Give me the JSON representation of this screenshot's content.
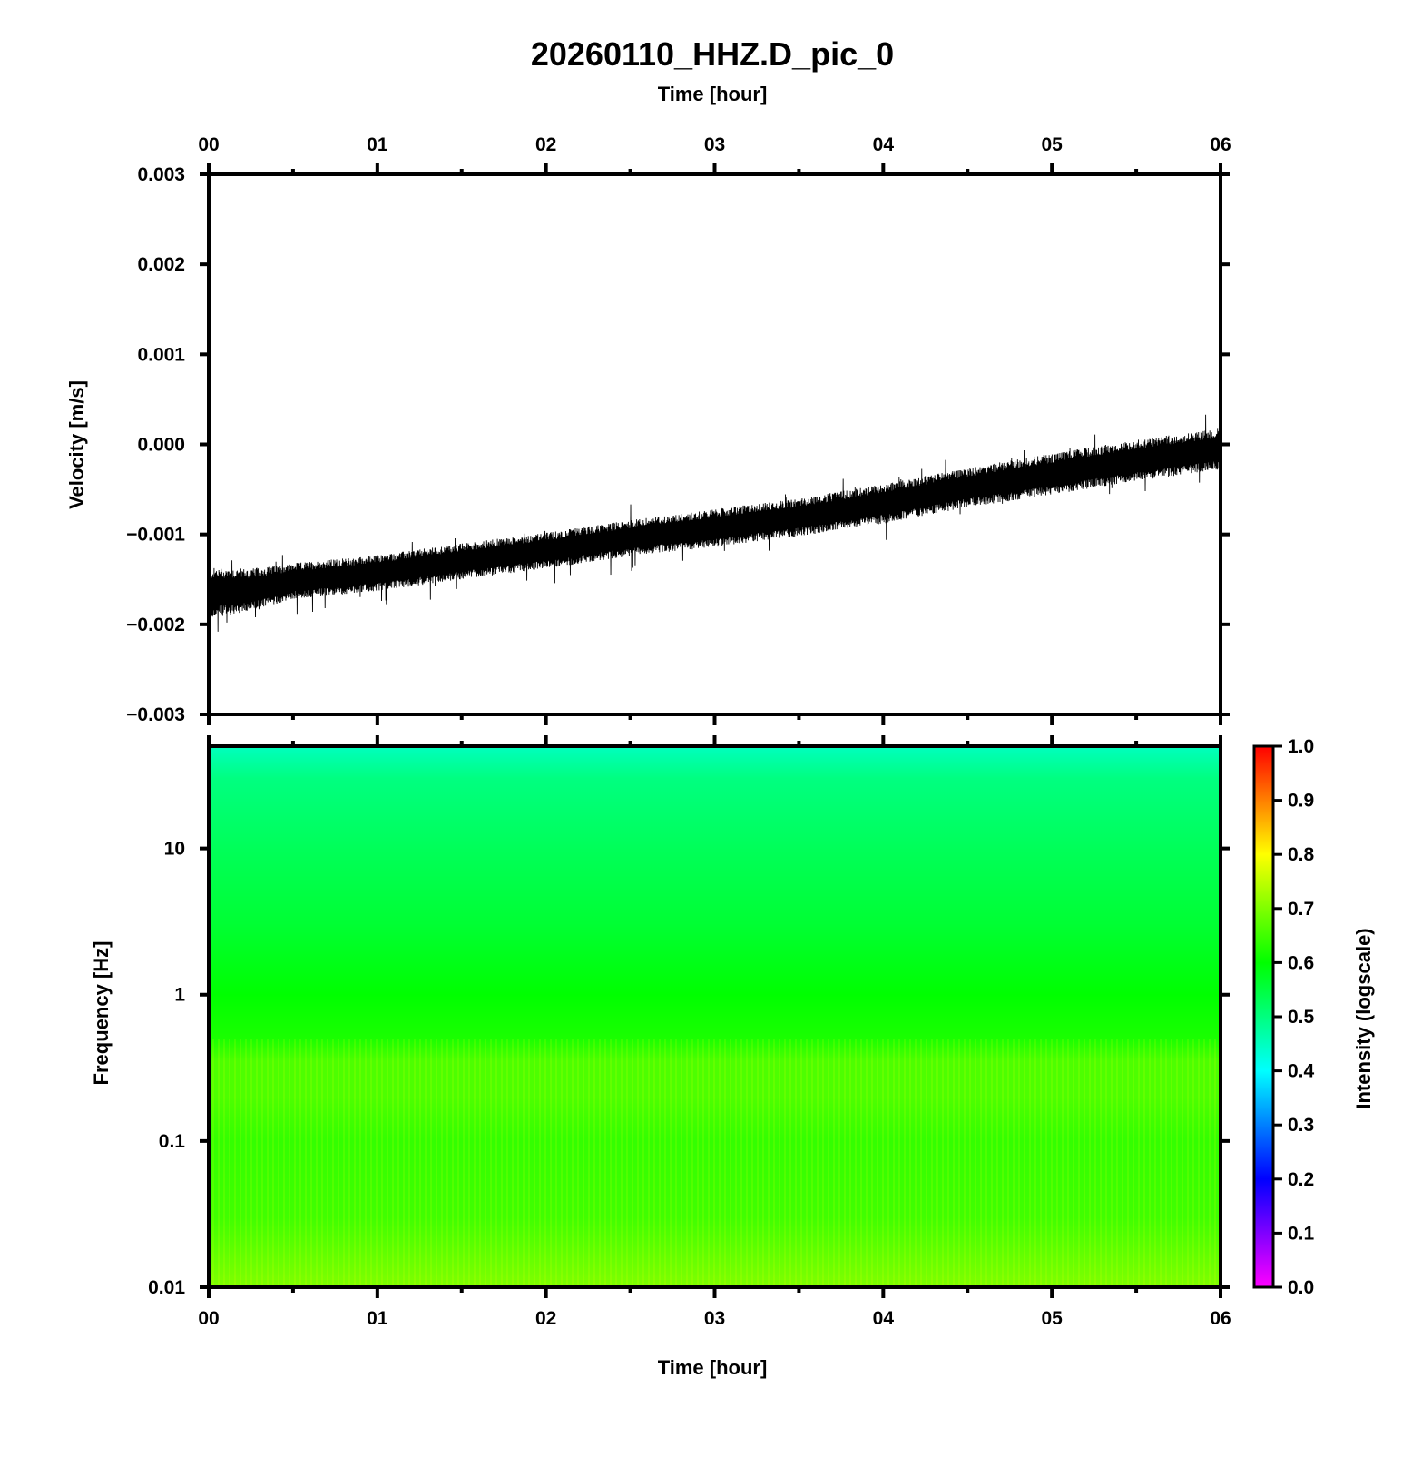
{
  "title": "20260110_HHZ.D_pic_0",
  "chart_data": [
    {
      "type": "line",
      "panel": "seismogram",
      "xlabel": "Time [hour]",
      "ylabel": "Velocity [m/s]",
      "x_tick_labels": [
        "00",
        "01",
        "02",
        "03",
        "04",
        "05",
        "06"
      ],
      "xlim": [
        0,
        6
      ],
      "y_tick_labels": [
        "0.003",
        "0.002",
        "0.001",
        "0.000",
        "−0.001",
        "−0.002",
        "−0.003"
      ],
      "y_ticks": [
        0.003,
        0.002,
        0.001,
        0.0,
        -0.001,
        -0.002,
        -0.003
      ],
      "ylim": [
        -0.003,
        0.003
      ],
      "series": [
        {
          "x": [
            0.0,
            0.25,
            0.5,
            1.0,
            1.5,
            2.0,
            2.5,
            3.0,
            3.5,
            4.0,
            4.5,
            5.0,
            5.5,
            6.0
          ],
          "y": [
            -0.00165,
            -0.00162,
            -0.00152,
            -0.00143,
            -0.0013,
            -0.00118,
            -0.00104,
            -0.00093,
            -0.00081,
            -0.00066,
            -0.00048,
            -0.00033,
            -0.00018,
            -5e-05
          ],
          "band_halfwidth": [
            0.00028,
            0.00024,
            0.0002,
            0.0002,
            0.0002,
            0.0002,
            0.0002,
            0.00021,
            0.00021,
            0.00022,
            0.00022,
            0.00023,
            0.00023,
            0.00023
          ],
          "color": "#000000"
        }
      ]
    },
    {
      "type": "heatmap",
      "panel": "spectrogram",
      "xlabel": "Time [hour]",
      "ylabel": "Frequency [Hz]",
      "x_tick_labels": [
        "00",
        "01",
        "02",
        "03",
        "04",
        "05",
        "06"
      ],
      "xlim": [
        0,
        6
      ],
      "y_scale": "log",
      "y_tick_labels": [
        "10",
        "1",
        "0.1",
        "0.01"
      ],
      "y_ticks": [
        10,
        1,
        0.1,
        0.01
      ],
      "ylim": [
        0.01,
        50
      ],
      "intensity_profile": {
        "frequency": [
          50,
          30,
          10,
          3,
          1,
          0.5,
          0.35,
          0.2,
          0.1,
          0.03,
          0.01
        ],
        "intensity": [
          0.45,
          0.5,
          0.53,
          0.56,
          0.6,
          0.62,
          0.66,
          0.66,
          0.64,
          0.65,
          0.7
        ]
      },
      "colorbar": {
        "label": "Intensity (logscale)",
        "tick_labels": [
          "1.0",
          "0.9",
          "0.8",
          "0.7",
          "0.6",
          "0.5",
          "0.4",
          "0.3",
          "0.2",
          "0.1",
          "0.0"
        ],
        "ticks": [
          1.0,
          0.9,
          0.8,
          0.7,
          0.6,
          0.5,
          0.4,
          0.3,
          0.2,
          0.1,
          0.0
        ],
        "range": [
          0,
          1
        ],
        "colormap": [
          "#ff00ff",
          "#0000ff",
          "#00ffff",
          "#00ff00",
          "#ffff00",
          "#ff0000"
        ]
      }
    }
  ]
}
